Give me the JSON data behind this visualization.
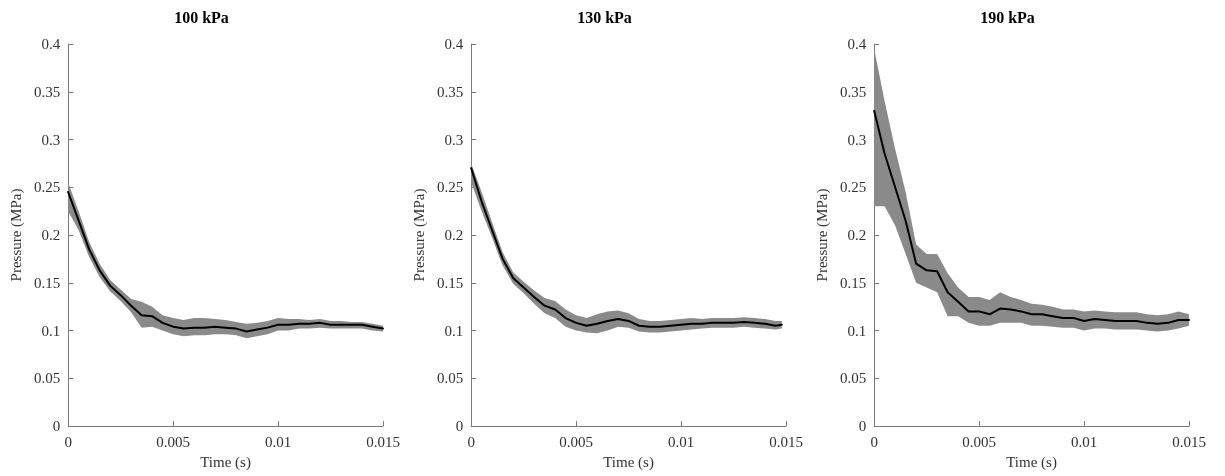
{
  "chart_data": [
    {
      "type": "line",
      "title": "100 kPa",
      "xlabel": "Time (s)",
      "ylabel": "Pressure (MPa)",
      "xlim": [
        0,
        0.015
      ],
      "xticks": [
        0,
        0.005,
        0.01,
        0.015
      ],
      "ylim": [
        0,
        0.4
      ],
      "yticks": [
        0,
        0.05,
        0.1,
        0.15,
        0.2,
        0.25,
        0.3,
        0.35,
        0.4
      ],
      "grid": false,
      "marker": "none",
      "line_style": "solid",
      "x": [
        0,
        0.0005,
        0.001,
        0.0015,
        0.002,
        0.0025,
        0.003,
        0.0035,
        0.004,
        0.0045,
        0.005,
        0.0055,
        0.006,
        0.0065,
        0.007,
        0.0075,
        0.008,
        0.0085,
        0.009,
        0.0095,
        0.01,
        0.0105,
        0.011,
        0.0115,
        0.012,
        0.0125,
        0.013,
        0.0135,
        0.014,
        0.0145,
        0.015
      ],
      "series": [
        {
          "color": "#000000",
          "values": [
            0.245,
            0.215,
            0.185,
            0.163,
            0.147,
            0.137,
            0.126,
            0.116,
            0.115,
            0.108,
            0.104,
            0.102,
            0.103,
            0.103,
            0.104,
            0.103,
            0.102,
            0.099,
            0.101,
            0.103,
            0.106,
            0.106,
            0.107,
            0.107,
            0.108,
            0.106,
            0.106,
            0.106,
            0.106,
            0.104,
            0.102
          ],
          "lower": [
            0.225,
            0.205,
            0.177,
            0.156,
            0.141,
            0.131,
            0.119,
            0.103,
            0.104,
            0.1,
            0.096,
            0.094,
            0.095,
            0.095,
            0.096,
            0.096,
            0.095,
            0.092,
            0.094,
            0.096,
            0.1,
            0.1,
            0.102,
            0.102,
            0.103,
            0.102,
            0.102,
            0.102,
            0.102,
            0.1,
            0.099
          ],
          "upper": [
            0.255,
            0.225,
            0.193,
            0.17,
            0.153,
            0.143,
            0.133,
            0.13,
            0.125,
            0.116,
            0.113,
            0.111,
            0.113,
            0.113,
            0.112,
            0.111,
            0.109,
            0.107,
            0.108,
            0.11,
            0.113,
            0.112,
            0.112,
            0.111,
            0.112,
            0.11,
            0.11,
            0.109,
            0.109,
            0.107,
            0.105
          ]
        }
      ]
    },
    {
      "type": "line",
      "title": "130 kPa",
      "xlabel": "Time (s)",
      "ylabel": "Pressure (MPa)",
      "xlim": [
        0,
        0.015
      ],
      "xticks": [
        0,
        0.005,
        0.01,
        0.015
      ],
      "ylim": [
        0,
        0.4
      ],
      "yticks": [
        0,
        0.05,
        0.1,
        0.15,
        0.2,
        0.25,
        0.3,
        0.35,
        0.4
      ],
      "grid": false,
      "marker": "none",
      "line_style": "solid",
      "x": [
        0,
        0.0005,
        0.001,
        0.0015,
        0.002,
        0.0025,
        0.003,
        0.0035,
        0.004,
        0.0045,
        0.005,
        0.0055,
        0.006,
        0.0065,
        0.007,
        0.0075,
        0.008,
        0.0085,
        0.009,
        0.0095,
        0.01,
        0.0105,
        0.011,
        0.0115,
        0.012,
        0.0125,
        0.013,
        0.0135,
        0.014,
        0.0145,
        0.0148
      ],
      "series": [
        {
          "color": "#000000",
          "values": [
            0.27,
            0.235,
            0.205,
            0.175,
            0.155,
            0.145,
            0.135,
            0.126,
            0.122,
            0.113,
            0.108,
            0.105,
            0.107,
            0.11,
            0.112,
            0.11,
            0.105,
            0.104,
            0.104,
            0.105,
            0.106,
            0.107,
            0.107,
            0.108,
            0.108,
            0.108,
            0.109,
            0.108,
            0.107,
            0.105,
            0.106
          ],
          "lower": [
            0.255,
            0.225,
            0.197,
            0.168,
            0.149,
            0.139,
            0.128,
            0.118,
            0.113,
            0.104,
            0.1,
            0.098,
            0.097,
            0.1,
            0.104,
            0.103,
            0.099,
            0.098,
            0.098,
            0.099,
            0.1,
            0.101,
            0.102,
            0.103,
            0.103,
            0.103,
            0.104,
            0.103,
            0.102,
            0.101,
            0.102
          ],
          "upper": [
            0.275,
            0.245,
            0.213,
            0.182,
            0.161,
            0.151,
            0.142,
            0.134,
            0.131,
            0.122,
            0.116,
            0.113,
            0.117,
            0.12,
            0.121,
            0.118,
            0.112,
            0.11,
            0.11,
            0.111,
            0.112,
            0.113,
            0.112,
            0.113,
            0.113,
            0.113,
            0.114,
            0.113,
            0.112,
            0.11,
            0.11
          ]
        }
      ]
    },
    {
      "type": "line",
      "title": "190 kPa",
      "xlabel": "Time (s)",
      "ylabel": "Pressure (MPa)",
      "xlim": [
        0,
        0.015
      ],
      "xticks": [
        0,
        0.005,
        0.01,
        0.015
      ],
      "ylim": [
        0,
        0.4
      ],
      "yticks": [
        0,
        0.05,
        0.1,
        0.15,
        0.2,
        0.25,
        0.3,
        0.35,
        0.4
      ],
      "grid": false,
      "marker": "none",
      "line_style": "solid",
      "x": [
        0,
        0.0005,
        0.001,
        0.0015,
        0.002,
        0.0025,
        0.003,
        0.0035,
        0.004,
        0.0045,
        0.005,
        0.0055,
        0.006,
        0.0065,
        0.007,
        0.0075,
        0.008,
        0.0085,
        0.009,
        0.0095,
        0.01,
        0.0105,
        0.011,
        0.0115,
        0.012,
        0.0125,
        0.013,
        0.0135,
        0.014,
        0.0145,
        0.015
      ],
      "series": [
        {
          "color": "#000000",
          "values": [
            0.33,
            0.285,
            0.25,
            0.215,
            0.17,
            0.163,
            0.162,
            0.14,
            0.13,
            0.12,
            0.12,
            0.117,
            0.123,
            0.122,
            0.12,
            0.117,
            0.117,
            0.115,
            0.113,
            0.113,
            0.11,
            0.112,
            0.111,
            0.11,
            0.11,
            0.11,
            0.108,
            0.107,
            0.108,
            0.111,
            0.111
          ],
          "lower": [
            0.23,
            0.23,
            0.21,
            0.18,
            0.15,
            0.145,
            0.14,
            0.115,
            0.115,
            0.108,
            0.105,
            0.105,
            0.108,
            0.108,
            0.108,
            0.105,
            0.105,
            0.104,
            0.103,
            0.103,
            0.1,
            0.102,
            0.102,
            0.101,
            0.101,
            0.101,
            0.1,
            0.099,
            0.1,
            0.102,
            0.105
          ],
          "upper": [
            0.395,
            0.34,
            0.29,
            0.245,
            0.19,
            0.18,
            0.18,
            0.16,
            0.145,
            0.135,
            0.135,
            0.132,
            0.14,
            0.135,
            0.132,
            0.128,
            0.127,
            0.125,
            0.122,
            0.122,
            0.12,
            0.121,
            0.12,
            0.119,
            0.119,
            0.119,
            0.117,
            0.116,
            0.117,
            0.12,
            0.117
          ]
        }
      ]
    }
  ]
}
